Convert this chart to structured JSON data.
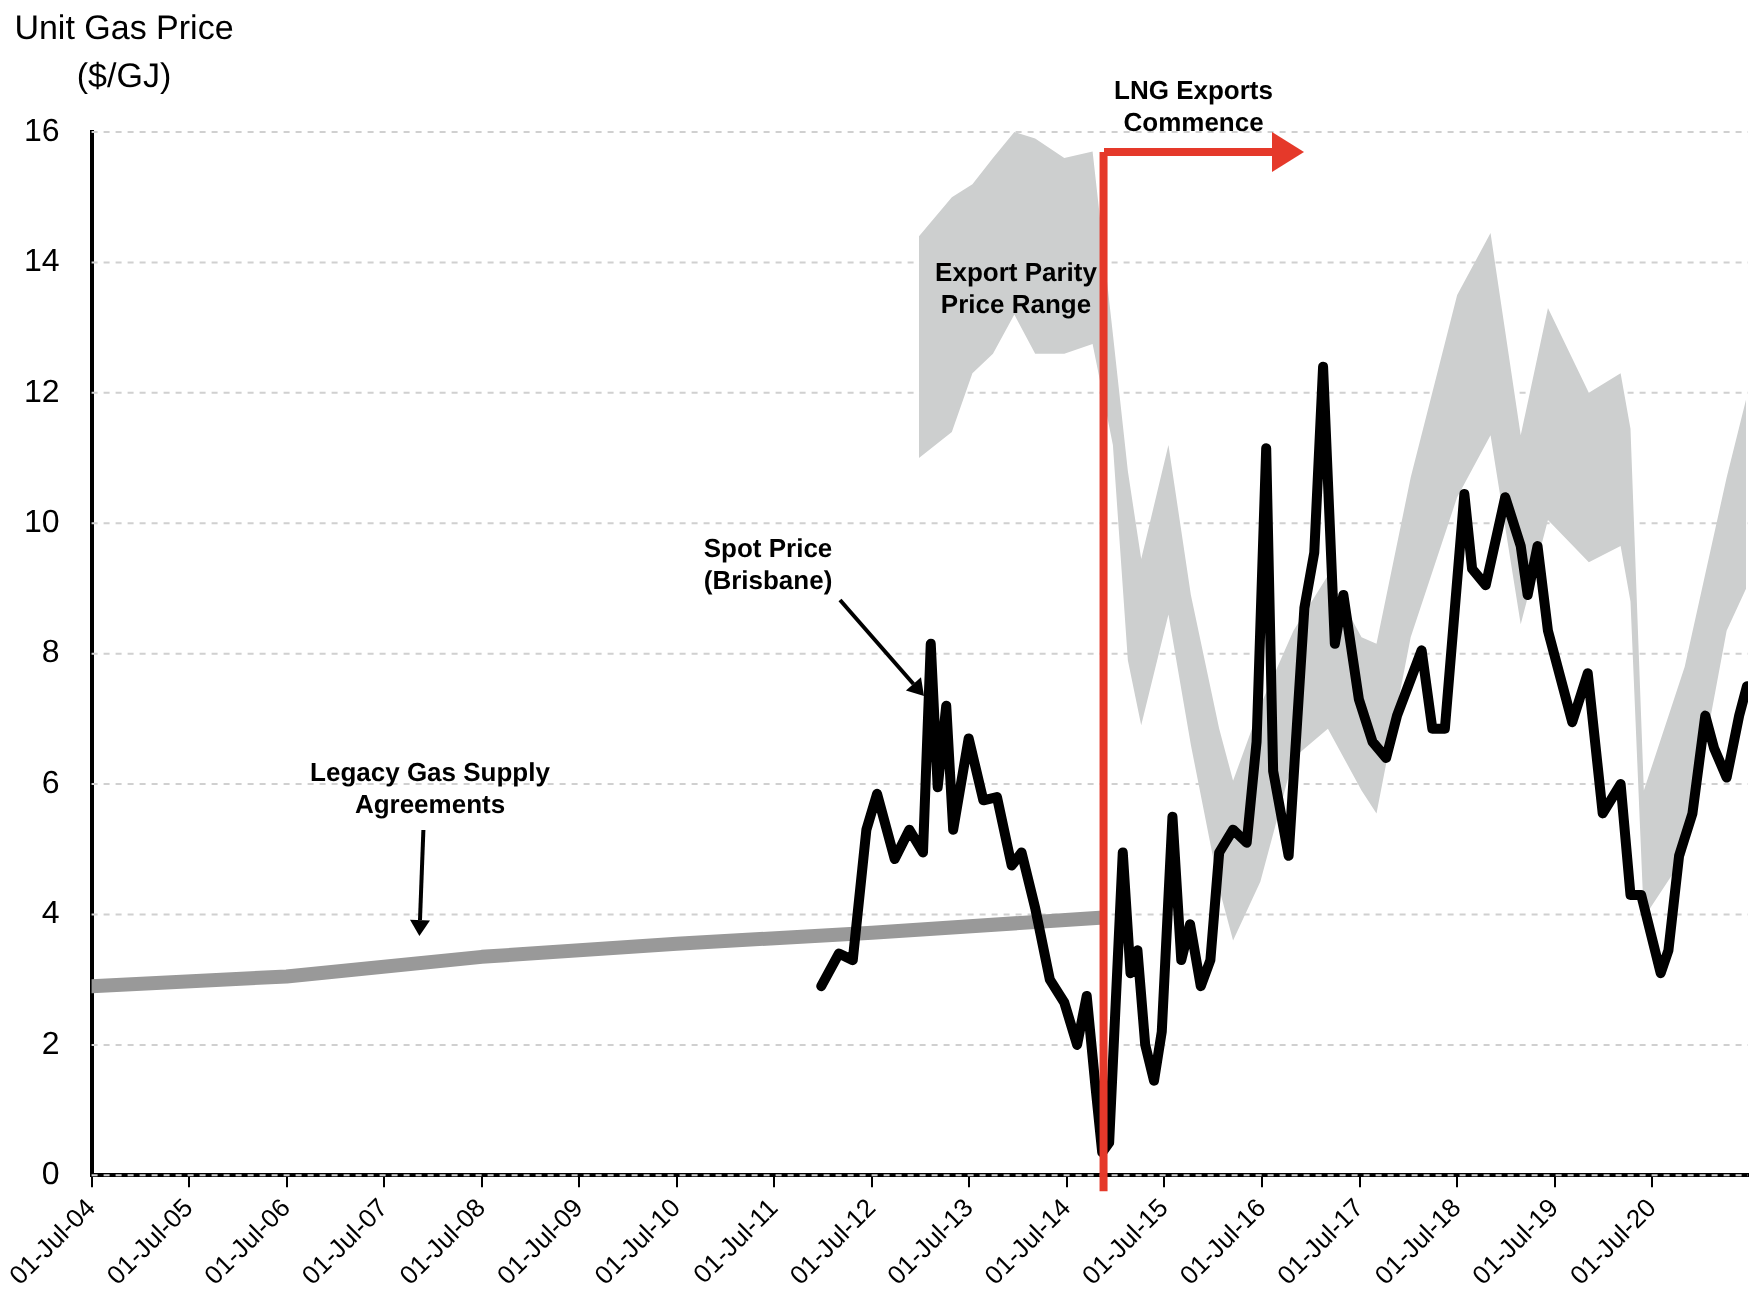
{
  "chart_data": {
    "type": "line",
    "ylabel": "Unit Gas Price\n($/GJ)",
    "xlim": [
      "2004-07-01",
      "2021-06-24"
    ],
    "xticks": [
      {
        "value": "2004-07-01",
        "label": "01-Jul-04"
      },
      {
        "value": "2005-07-01",
        "label": "01-Jul-05"
      },
      {
        "value": "2006-07-01",
        "label": "01-Jul-06"
      },
      {
        "value": "2007-07-01",
        "label": "01-Jul-07"
      },
      {
        "value": "2008-07-01",
        "label": "01-Jul-08"
      },
      {
        "value": "2009-07-01",
        "label": "01-Jul-09"
      },
      {
        "value": "2010-07-01",
        "label": "01-Jul-10"
      },
      {
        "value": "2011-07-01",
        "label": "01-Jul-11"
      },
      {
        "value": "2012-07-01",
        "label": "01-Jul-12"
      },
      {
        "value": "2013-07-01",
        "label": "01-Jul-13"
      },
      {
        "value": "2014-07-01",
        "label": "01-Jul-14"
      },
      {
        "value": "2015-07-01",
        "label": "01-Jul-15"
      },
      {
        "value": "2016-07-01",
        "label": "01-Jul-16"
      },
      {
        "value": "2017-07-01",
        "label": "01-Jul-17"
      },
      {
        "value": "2018-07-01",
        "label": "01-Jul-18"
      },
      {
        "value": "2019-07-01",
        "label": "01-Jul-19"
      },
      {
        "value": "2020-07-01",
        "label": "01-Jul-20"
      }
    ],
    "ylim": [
      0,
      16
    ],
    "yticks": [
      0,
      2,
      4,
      6,
      8,
      10,
      12,
      14,
      16
    ],
    "grid": "y",
    "legend": false,
    "series": [
      {
        "type": "area",
        "color": "#cdcfcf",
        "x": [
          "2012-12-24",
          "2013-04-26",
          "2013-07-12",
          "2013-09-27",
          "2013-12-16",
          "2014-03-04",
          "2014-06-21",
          "2014-10-05",
          "2014-12-20",
          "2015-02-14",
          "2015-04-05",
          "2015-07-16",
          "2015-10-08",
          "2016-01-22",
          "2016-03-14",
          "2016-06-24",
          "2016-10-26",
          "2017-03-04",
          "2017-07-08",
          "2017-09-02",
          "2018-01-08",
          "2018-07-01",
          "2018-11-03",
          "2019-02-24",
          "2019-06-06",
          "2019-11-06",
          "2020-03-04",
          "2020-04-10",
          "2020-05-30",
          "2020-10-30",
          "2021-04-05",
          "2021-06-17"
        ],
        "values": [
          null,
          null,
          null,
          null,
          null,
          null,
          null,
          null,
          null,
          null,
          null,
          null,
          null,
          null,
          null,
          null,
          null,
          null,
          null,
          null,
          null,
          null,
          null,
          null,
          null,
          null,
          null,
          null,
          null,
          null,
          null,
          null
        ],
        "lower": [
          11.0,
          11.4,
          12.3,
          12.6,
          13.2,
          12.6,
          12.6,
          12.75,
          11.2,
          7.9,
          6.9,
          8.6,
          6.6,
          4.4,
          3.6,
          4.5,
          6.4,
          6.85,
          5.9,
          5.55,
          8.25,
          10.4,
          11.35,
          8.45,
          10.05,
          9.4,
          9.65,
          8.8,
          3.95,
          4.9,
          8.35,
          9.0
        ],
        "upper": [
          14.4,
          15.0,
          15.2,
          15.6,
          16.0,
          15.9,
          15.6,
          15.7,
          12.9,
          10.8,
          9.45,
          11.2,
          8.9,
          6.85,
          6.05,
          7.2,
          8.35,
          9.2,
          8.25,
          8.15,
          10.7,
          13.5,
          14.45,
          11.35,
          13.3,
          12.0,
          12.3,
          11.45,
          5.9,
          7.8,
          10.7,
          11.9
        ]
      },
      {
        "color": "#999999",
        "x": [
          "2004-07-01",
          "2006-07-01",
          "2008-07-01",
          "2010-07-01",
          "2012-07-01",
          "2014-11-01"
        ],
        "values": [
          2.9,
          3.05,
          3.35,
          3.55,
          3.72,
          3.95
        ]
      },
      {
        "color": "#000000",
        "x": [
          "2011-12-24",
          "2012-02-28",
          "2012-04-20",
          "2012-06-10",
          "2012-07-20",
          "2012-09-24",
          "2012-11-18",
          "2013-01-08",
          "2013-02-06",
          "2013-03-04",
          "2013-04-05",
          "2013-05-01",
          "2013-06-28",
          "2013-08-22",
          "2013-10-12",
          "2013-12-06",
          "2014-01-12",
          "2014-03-04",
          "2014-04-28",
          "2014-06-21",
          "2014-08-08",
          "2014-09-13",
          "2014-10-16",
          "2014-11-10",
          "2014-12-06",
          "2015-01-26",
          "2015-02-24",
          "2015-03-22",
          "2015-04-20",
          "2015-05-23",
          "2015-06-21",
          "2015-07-31",
          "2015-09-02",
          "2015-10-05",
          "2015-11-14",
          "2015-12-20",
          "2016-01-22",
          "2016-03-14",
          "2016-05-04",
          "2016-06-10",
          "2016-07-16",
          "2016-08-11",
          "2016-10-08",
          "2016-12-06",
          "2017-01-12",
          "2017-02-14",
          "2017-03-30",
          "2017-05-01",
          "2017-06-28",
          "2017-08-18",
          "2017-10-08",
          "2017-11-18",
          "2018-02-18",
          "2018-03-30",
          "2018-05-16",
          "2018-07-28",
          "2018-08-26",
          "2018-10-16",
          "2018-12-28",
          "2019-02-24",
          "2019-03-22",
          "2019-04-28",
          "2019-06-06",
          "2019-09-05",
          "2019-11-02",
          "2019-12-28",
          "2020-03-04",
          "2020-04-10",
          "2020-05-20",
          "2020-08-01",
          "2020-08-30",
          "2020-10-09",
          "2020-11-28",
          "2021-01-15",
          "2021-02-17",
          "2021-04-05",
          "2021-05-22",
          "2021-06-20"
        ],
        "values": [
          2.9,
          3.4,
          3.3,
          5.3,
          5.85,
          4.85,
          5.3,
          4.95,
          8.15,
          5.95,
          7.2,
          5.3,
          6.7,
          5.75,
          5.8,
          4.75,
          4.95,
          4.1,
          3.0,
          2.65,
          2.0,
          2.75,
          1.35,
          0.35,
          0.5,
          4.95,
          3.1,
          3.45,
          2.0,
          1.45,
          2.2,
          5.5,
          3.3,
          3.85,
          2.9,
          3.3,
          4.95,
          5.3,
          5.1,
          6.65,
          11.15,
          6.2,
          4.9,
          8.7,
          9.55,
          12.4,
          8.15,
          8.9,
          7.3,
          6.65,
          6.4,
          7.05,
          8.05,
          6.85,
          6.85,
          10.45,
          9.3,
          9.05,
          10.4,
          9.65,
          8.9,
          9.65,
          8.35,
          6.95,
          7.7,
          5.55,
          6.0,
          4.3,
          4.3,
          3.1,
          3.45,
          4.9,
          5.55,
          7.05,
          6.55,
          6.1,
          7.05,
          7.5
        ]
      }
    ],
    "ref_lines": [
      {
        "axis": "x",
        "value": "2014-11-15",
        "label": "LNG Exports Commence",
        "color": "#e5392a"
      }
    ],
    "annotations": [
      "Spot Price\n(Brisbane)",
      "Legacy Gas Supply\nAgreements",
      "Export Parity\nPrice Range"
    ]
  }
}
